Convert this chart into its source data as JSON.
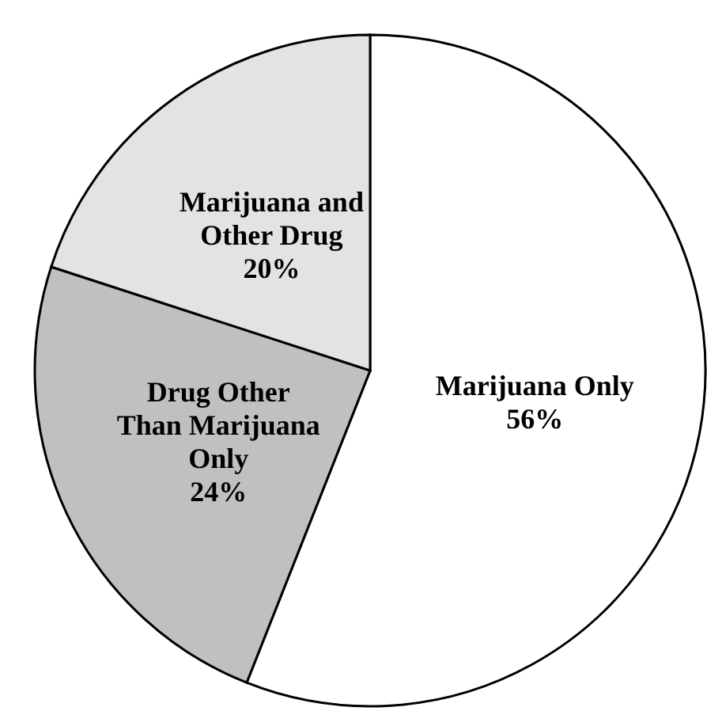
{
  "chart_data": {
    "type": "pie",
    "categories": [
      "Marijuana Only",
      "Drug Other Than Marijuana Only",
      "Marijuana and Other Drug"
    ],
    "values": [
      56,
      24,
      20
    ],
    "colors": [
      "#ffffff",
      "#c0c0c0",
      "#e3e3e3"
    ],
    "value_labels": [
      "56%",
      "24%",
      "20%"
    ]
  }
}
